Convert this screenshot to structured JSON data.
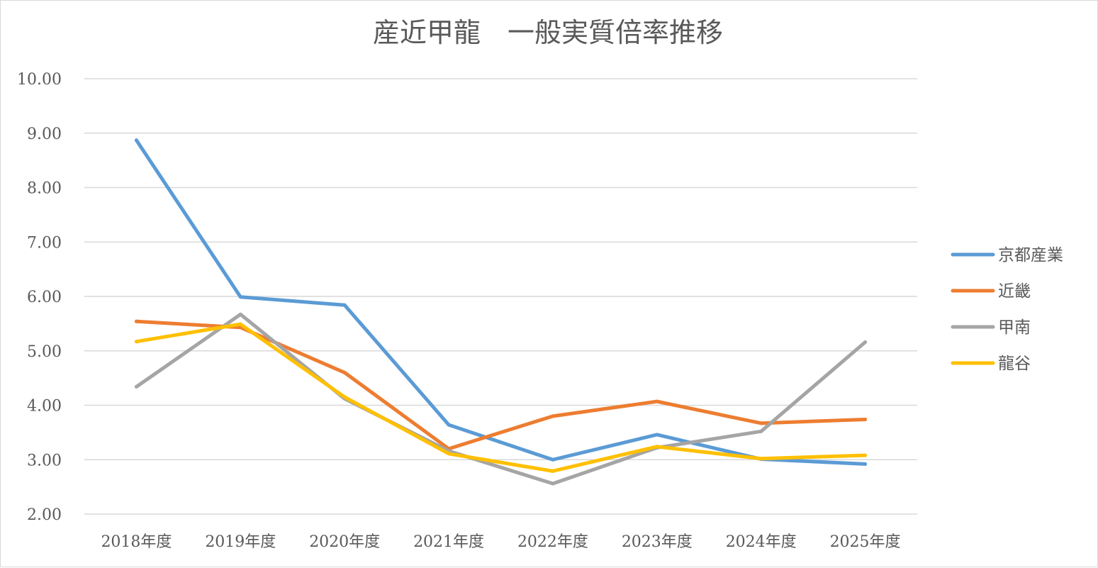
{
  "chart_data": {
    "type": "line",
    "title": "産近甲龍　一般実質倍率推移",
    "xlabel": "",
    "ylabel": "",
    "categories": [
      "2018年度",
      "2019年度",
      "2020年度",
      "2021年度",
      "2022年度",
      "2023年度",
      "2024年度",
      "2025年度"
    ],
    "ylim": [
      2.0,
      10.0
    ],
    "yticks": [
      "2.00",
      "3.00",
      "4.00",
      "5.00",
      "6.00",
      "7.00",
      "8.00",
      "9.00",
      "10.00"
    ],
    "grid": true,
    "legend_position": "right",
    "series": [
      {
        "name": "京都産業",
        "color": "#5B9BD5",
        "values": [
          8.87,
          5.99,
          5.84,
          3.64,
          3.0,
          3.46,
          3.01,
          2.92
        ]
      },
      {
        "name": "近畿",
        "color": "#ED7D31",
        "values": [
          5.54,
          5.43,
          4.6,
          3.2,
          3.8,
          4.07,
          3.67,
          3.74
        ]
      },
      {
        "name": "甲南",
        "color": "#A5A5A5",
        "values": [
          4.34,
          5.67,
          4.12,
          3.16,
          2.56,
          3.22,
          3.52,
          5.16
        ]
      },
      {
        "name": "龍谷",
        "color": "#FFC000",
        "values": [
          5.17,
          5.49,
          4.15,
          3.11,
          2.79,
          3.24,
          3.02,
          3.08
        ]
      }
    ]
  }
}
